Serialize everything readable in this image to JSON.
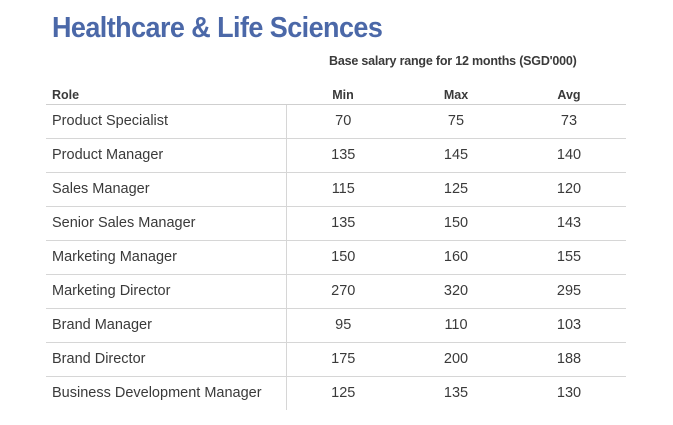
{
  "title": "Healthcare & Life Sciences",
  "caption": "Base salary range for 12 months (SGD'000)",
  "columns": {
    "role": "Role",
    "min": "Min",
    "max": "Max",
    "avg": "Avg"
  },
  "rows": [
    {
      "role": "Product Specialist",
      "min": "70",
      "max": "75",
      "avg": "73"
    },
    {
      "role": "Product Manager",
      "min": "135",
      "max": "145",
      "avg": "140"
    },
    {
      "role": "Sales Manager",
      "min": "115",
      "max": "125",
      "avg": "120"
    },
    {
      "role": "Senior Sales Manager",
      "min": "135",
      "max": "150",
      "avg": "143"
    },
    {
      "role": "Marketing Manager",
      "min": "150",
      "max": "160",
      "avg": "155"
    },
    {
      "role": "Marketing Director",
      "min": "270",
      "max": "320",
      "avg": "295"
    },
    {
      "role": "Brand Manager",
      "min": "95",
      "max": "110",
      "avg": "103"
    },
    {
      "role": "Brand Director",
      "min": "175",
      "max": "200",
      "avg": "188"
    },
    {
      "role": "Business Development Manager",
      "min": "125",
      "max": "135",
      "avg": "130"
    }
  ],
  "colors": {
    "title": "#4b68a8",
    "text": "#3a3a3a",
    "rule": "#d6d6d6"
  }
}
